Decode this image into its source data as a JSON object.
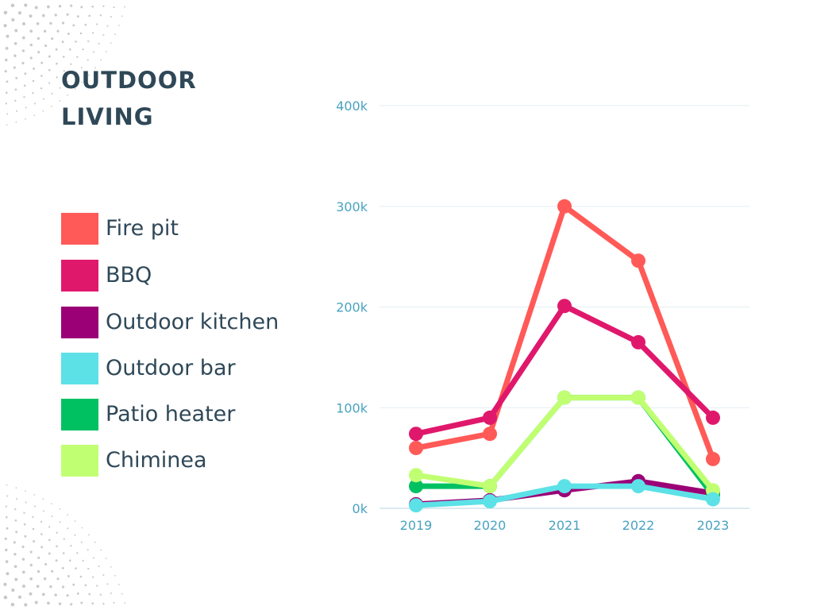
{
  "title_line1": "OUTDOOR",
  "title_line2": "LIVING",
  "colors": {
    "background": "#ffffff",
    "title": "#2f4858",
    "axis_text": "#4aa3c0",
    "grid": "#e3eef2",
    "dots": "#c9c9c9"
  },
  "legend": [
    {
      "label": "Fire pit",
      "color": "#ff5a57"
    },
    {
      "label": "BBQ",
      "color": "#e0186c"
    },
    {
      "label": "Outdoor kitchen",
      "color": "#9b0077"
    },
    {
      "label": "Outdoor bar",
      "color": "#5ce1e6"
    },
    {
      "label": "Patio heater",
      "color": "#00c162"
    },
    {
      "label": "Chiminea",
      "color": "#c1ff72"
    }
  ],
  "chart_data": {
    "type": "line",
    "x": [
      "2019",
      "2020",
      "2021",
      "2022",
      "2023"
    ],
    "ylim": [
      0,
      400000
    ],
    "yticks": [
      {
        "value": 0,
        "label": "0k"
      },
      {
        "value": 100000,
        "label": "100k"
      },
      {
        "value": 200000,
        "label": "200k"
      },
      {
        "value": 300000,
        "label": "300k"
      },
      {
        "value": 400000,
        "label": "400k"
      }
    ],
    "grid": true,
    "legend_position": "left",
    "series": [
      {
        "name": "Fire pit",
        "color": "#ff5a57",
        "values": [
          60000,
          74000,
          300000,
          246000,
          49000
        ]
      },
      {
        "name": "BBQ",
        "color": "#e0186c",
        "values": [
          74000,
          90000,
          201000,
          165000,
          90000
        ]
      },
      {
        "name": "Outdoor kitchen",
        "color": "#9b0077",
        "values": [
          4000,
          8000,
          18000,
          27000,
          15000
        ]
      },
      {
        "name": "Patio heater",
        "color": "#00c162",
        "values": [
          22000,
          22000,
          110000,
          110000,
          13000
        ]
      },
      {
        "name": "Chiminea",
        "color": "#c1ff72",
        "values": [
          33000,
          22000,
          110000,
          110000,
          18000
        ]
      },
      {
        "name": "Outdoor bar",
        "color": "#5ce1e6",
        "values": [
          3000,
          7000,
          22000,
          22000,
          9000
        ]
      }
    ]
  }
}
